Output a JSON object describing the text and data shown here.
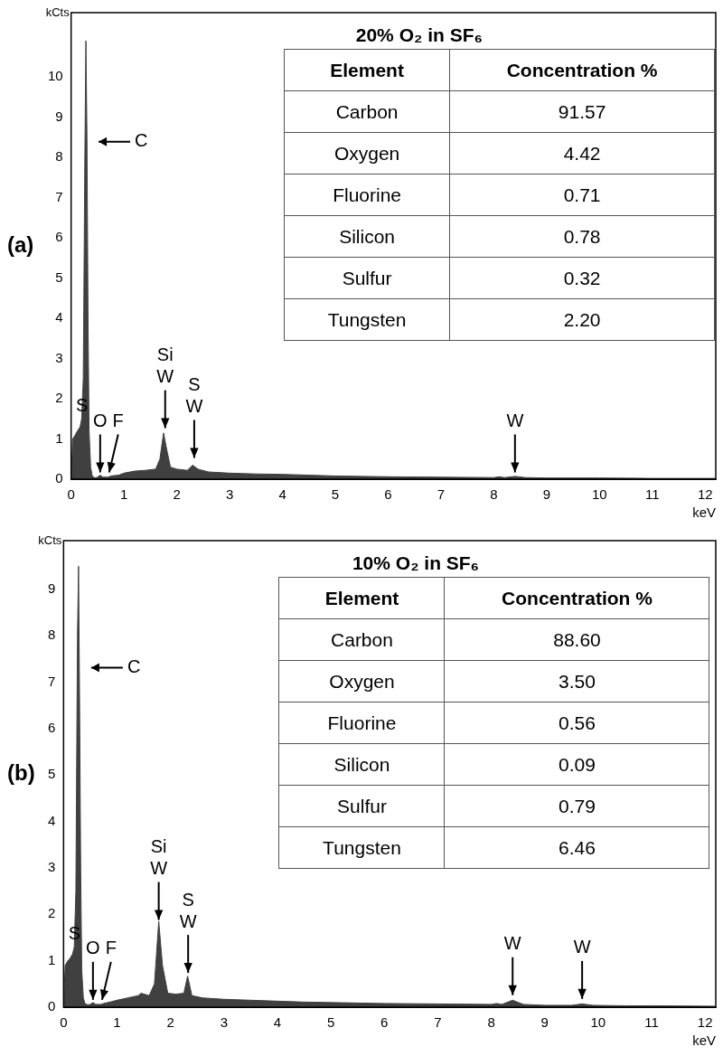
{
  "chart_data": [
    {
      "type": "area",
      "title": "20% O₂ in SF₆",
      "xlabel": "keV",
      "ylabel": "kCts",
      "x": [
        0,
        0.03,
        0.08,
        0.12,
        0.17,
        0.2,
        0.23,
        0.26,
        0.28,
        0.3,
        0.32,
        0.34,
        0.37,
        0.4,
        0.45,
        0.5,
        0.55,
        0.6,
        0.7,
        0.75,
        0.9,
        1.0,
        1.2,
        1.4,
        1.6,
        1.68,
        1.75,
        1.8,
        1.88,
        2.0,
        2.2,
        2.3,
        2.4,
        2.6,
        3,
        3.5,
        4,
        4.5,
        5,
        6,
        7,
        8,
        8.1,
        8.2,
        8.4,
        8.6,
        9,
        10,
        11,
        12.2
      ],
      "series": [
        {
          "color": "#404040",
          "values": [
            0,
            1.0,
            1.1,
            1.2,
            1.3,
            1.5,
            2.5,
            8,
            10.9,
            8.5,
            4,
            1.2,
            0.3,
            0.08,
            0.03,
            0.05,
            0.1,
            0.05,
            0.05,
            0.08,
            0.1,
            0.15,
            0.2,
            0.22,
            0.25,
            0.5,
            1.15,
            0.8,
            0.3,
            0.25,
            0.22,
            0.35,
            0.25,
            0.18,
            0.15,
            0.13,
            0.12,
            0.1,
            0.08,
            0.06,
            0.05,
            0.04,
            0.06,
            0.04,
            0.07,
            0.04,
            0.03,
            0.03,
            0.02,
            0.02
          ]
        }
      ],
      "xlim": [
        0,
        12.2
      ],
      "ylim": [
        0,
        11.6
      ],
      "xticks": [
        0,
        1,
        2,
        3,
        4,
        5,
        6,
        7,
        8,
        9,
        10,
        11,
        12
      ],
      "yticks": [
        0,
        1,
        2,
        3,
        4,
        5,
        6,
        7,
        8,
        9,
        10
      ],
      "annotations": [
        "(a)",
        "C",
        "S",
        "Element",
        "Concentration %",
        "Carbon",
        "91.57",
        "Oxygen",
        "4.42",
        "Fluorine",
        "0.71",
        "Silicon",
        "0.78",
        "Sulfur",
        "0.32",
        "Tungsten",
        "2.20",
        {
          "text": "O",
          "x": 0.55,
          "y": 0.1
        },
        {
          "text": "F",
          "x": 0.72,
          "y": 0.1
        },
        {
          "text": "Si\nW",
          "x": 1.78,
          "y": 1.2
        },
        {
          "text": "S\nW",
          "x": 2.33,
          "y": 0.46
        },
        {
          "text": "W",
          "x": 8.4,
          "y": 0.1
        }
      ]
    },
    {
      "type": "area",
      "title": "10% O₂ in SF₆",
      "xlabel": "keV",
      "ylabel": "kCts",
      "x": [
        0,
        0.03,
        0.08,
        0.12,
        0.17,
        0.2,
        0.23,
        0.26,
        0.28,
        0.3,
        0.32,
        0.34,
        0.37,
        0.4,
        0.45,
        0.5,
        0.55,
        0.6,
        0.7,
        0.75,
        0.9,
        1.0,
        1.2,
        1.4,
        1.45,
        1.6,
        1.7,
        1.78,
        1.85,
        1.95,
        2.1,
        2.25,
        2.32,
        2.4,
        2.6,
        3,
        3.5,
        4,
        4.5,
        5,
        6,
        7,
        8,
        8.1,
        8.2,
        8.4,
        8.6,
        9,
        9.5,
        9.7,
        9.9,
        10.5,
        11,
        12.2
      ],
      "series": [
        {
          "color": "#404040",
          "values": [
            0,
            0.9,
            1.0,
            1.05,
            1.15,
            1.3,
            2.5,
            8,
            9.5,
            6.5,
            3,
            0.8,
            0.2,
            0.08,
            0.05,
            0.06,
            0.1,
            0.06,
            0.06,
            0.08,
            0.12,
            0.15,
            0.2,
            0.25,
            0.3,
            0.25,
            0.5,
            1.85,
            0.9,
            0.3,
            0.28,
            0.3,
            0.67,
            0.25,
            0.2,
            0.17,
            0.15,
            0.13,
            0.11,
            0.1,
            0.08,
            0.07,
            0.06,
            0.08,
            0.06,
            0.15,
            0.06,
            0.04,
            0.04,
            0.07,
            0.04,
            0.03,
            0.03,
            0.02
          ]
        }
      ],
      "xlim": [
        0,
        12.2
      ],
      "ylim": [
        0,
        10.05
      ],
      "xticks": [
        0,
        1,
        2,
        3,
        4,
        5,
        6,
        7,
        8,
        9,
        10,
        11,
        12
      ],
      "yticks": [
        0,
        1,
        2,
        3,
        4,
        5,
        6,
        7,
        8,
        9
      ],
      "annotations": [
        "(b)",
        "C",
        "S",
        "Element",
        "Concentration %",
        "Carbon",
        "88.60",
        "Oxygen",
        "3.50",
        "Fluorine",
        "0.56",
        "Silicon",
        "0.09",
        "Sulfur",
        "0.79",
        "Tungsten",
        "6.46",
        {
          "text": "O",
          "x": 0.55,
          "y": 0.1
        },
        {
          "text": "F",
          "x": 0.72,
          "y": 0.1
        },
        {
          "text": "Si\nW",
          "x": 1.78,
          "y": 1.82
        },
        {
          "text": "S\nW",
          "x": 2.33,
          "y": 0.68
        },
        {
          "text": "W",
          "x": 8.4,
          "y": 0.2
        },
        {
          "text": "W",
          "x": 9.7,
          "y": 0.12
        }
      ]
    }
  ]
}
